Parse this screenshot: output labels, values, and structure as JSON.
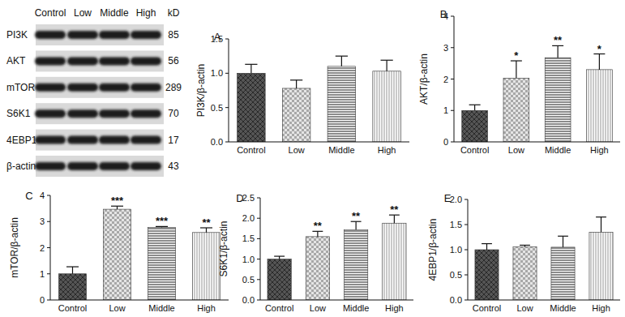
{
  "blot": {
    "lanes": [
      "Control",
      "Low",
      "Middle",
      "High"
    ],
    "unit": "kD",
    "rows": [
      {
        "label": "PI3K",
        "kd": 85
      },
      {
        "label": "AKT",
        "kd": 56
      },
      {
        "label": "mTOR",
        "kd": 289
      },
      {
        "label": "S6K1",
        "kd": 70
      },
      {
        "label": "4EBP1",
        "kd": 17
      },
      {
        "label": "β-actin",
        "kd": 43
      }
    ]
  },
  "chart_data": [
    {
      "type": "bar",
      "title": "A",
      "y_label": "PI3K/β-actin",
      "categories": [
        "Control",
        "Low",
        "Middle",
        "High"
      ],
      "values": [
        1.0,
        0.78,
        1.1,
        1.03
      ],
      "errors": [
        0.13,
        0.12,
        0.15,
        0.16
      ],
      "annotations": [
        null,
        null,
        null,
        null
      ],
      "colors": [
        "#555555",
        "#a8a8a8",
        "#8c8c8c",
        "#c4c4c4"
      ],
      "ylim": [
        0,
        1.5
      ],
      "yticks": [
        {
          "value": 0,
          "label": "0.0"
        },
        {
          "value": 0.5,
          "label": "0.5"
        },
        {
          "value": 1,
          "label": "1.0"
        },
        {
          "value": 1.5,
          "label": "1.5"
        }
      ]
    },
    {
      "type": "bar",
      "title": "B",
      "y_label": "AKT/β-actin",
      "categories": [
        "Control",
        "Low",
        "Middle",
        "High"
      ],
      "values": [
        1.0,
        2.03,
        2.68,
        2.3
      ],
      "errors": [
        0.18,
        0.55,
        0.38,
        0.5
      ],
      "annotations": [
        null,
        "*",
        "**",
        "*"
      ],
      "colors": [
        "#555555",
        "#a8a8a8",
        "#8c8c8c",
        "#c4c4c4"
      ],
      "ylim": [
        0,
        4
      ],
      "yticks": [
        0,
        1,
        2,
        3,
        4
      ]
    },
    {
      "type": "bar",
      "title": "C",
      "y_label": "mTOR/β-actin",
      "categories": [
        "Control",
        "Low",
        "Middle",
        "High"
      ],
      "values": [
        1.0,
        3.47,
        2.78,
        2.58
      ],
      "errors": [
        0.27,
        0.12,
        0.03,
        0.18
      ],
      "annotations": [
        null,
        "***",
        "***",
        "**"
      ],
      "colors": [
        "#555555",
        "#a8a8a8",
        "#8c8c8c",
        "#c4c4c4"
      ],
      "ylim": [
        0,
        4
      ],
      "yticks": [
        0,
        1,
        2,
        3,
        4
      ]
    },
    {
      "type": "bar",
      "title": "D",
      "y_label": "S6K1/β-actin",
      "categories": [
        "Control",
        "Low",
        "Middle",
        "High"
      ],
      "values": [
        1.0,
        1.55,
        1.72,
        1.88
      ],
      "errors": [
        0.07,
        0.13,
        0.2,
        0.2
      ],
      "annotations": [
        null,
        "**",
        "**",
        "**"
      ],
      "colors": [
        "#555555",
        "#a8a8a8",
        "#8c8c8c",
        "#c4c4c4"
      ],
      "ylim": [
        0,
        2.5
      ],
      "yticks": [
        {
          "value": 0,
          "label": "0.0"
        },
        {
          "value": 0.5,
          "label": "0.5"
        },
        {
          "value": 1,
          "label": "1.0"
        },
        {
          "value": 1.5,
          "label": "1.5"
        },
        {
          "value": 2,
          "label": "2.0"
        },
        {
          "value": 2.5,
          "label": "2.5"
        }
      ]
    },
    {
      "type": "bar",
      "title": "E",
      "y_label": "4EBP1/β-actin",
      "categories": [
        "Control",
        "Low",
        "Middle",
        "High"
      ],
      "values": [
        1.0,
        1.06,
        1.05,
        1.35
      ],
      "errors": [
        0.12,
        0.03,
        0.22,
        0.3
      ],
      "annotations": [
        null,
        null,
        null,
        null
      ],
      "colors": [
        "#555555",
        "#a8a8a8",
        "#8c8c8c",
        "#c4c4c4"
      ],
      "ylim": [
        0,
        2
      ],
      "yticks": [
        {
          "value": 0,
          "label": "0.0"
        },
        {
          "value": 0.5,
          "label": "0.5"
        },
        {
          "value": 1,
          "label": "1.0"
        },
        {
          "value": 1.5,
          "label": "1.5"
        },
        {
          "value": 2,
          "label": "2.0"
        }
      ]
    }
  ]
}
